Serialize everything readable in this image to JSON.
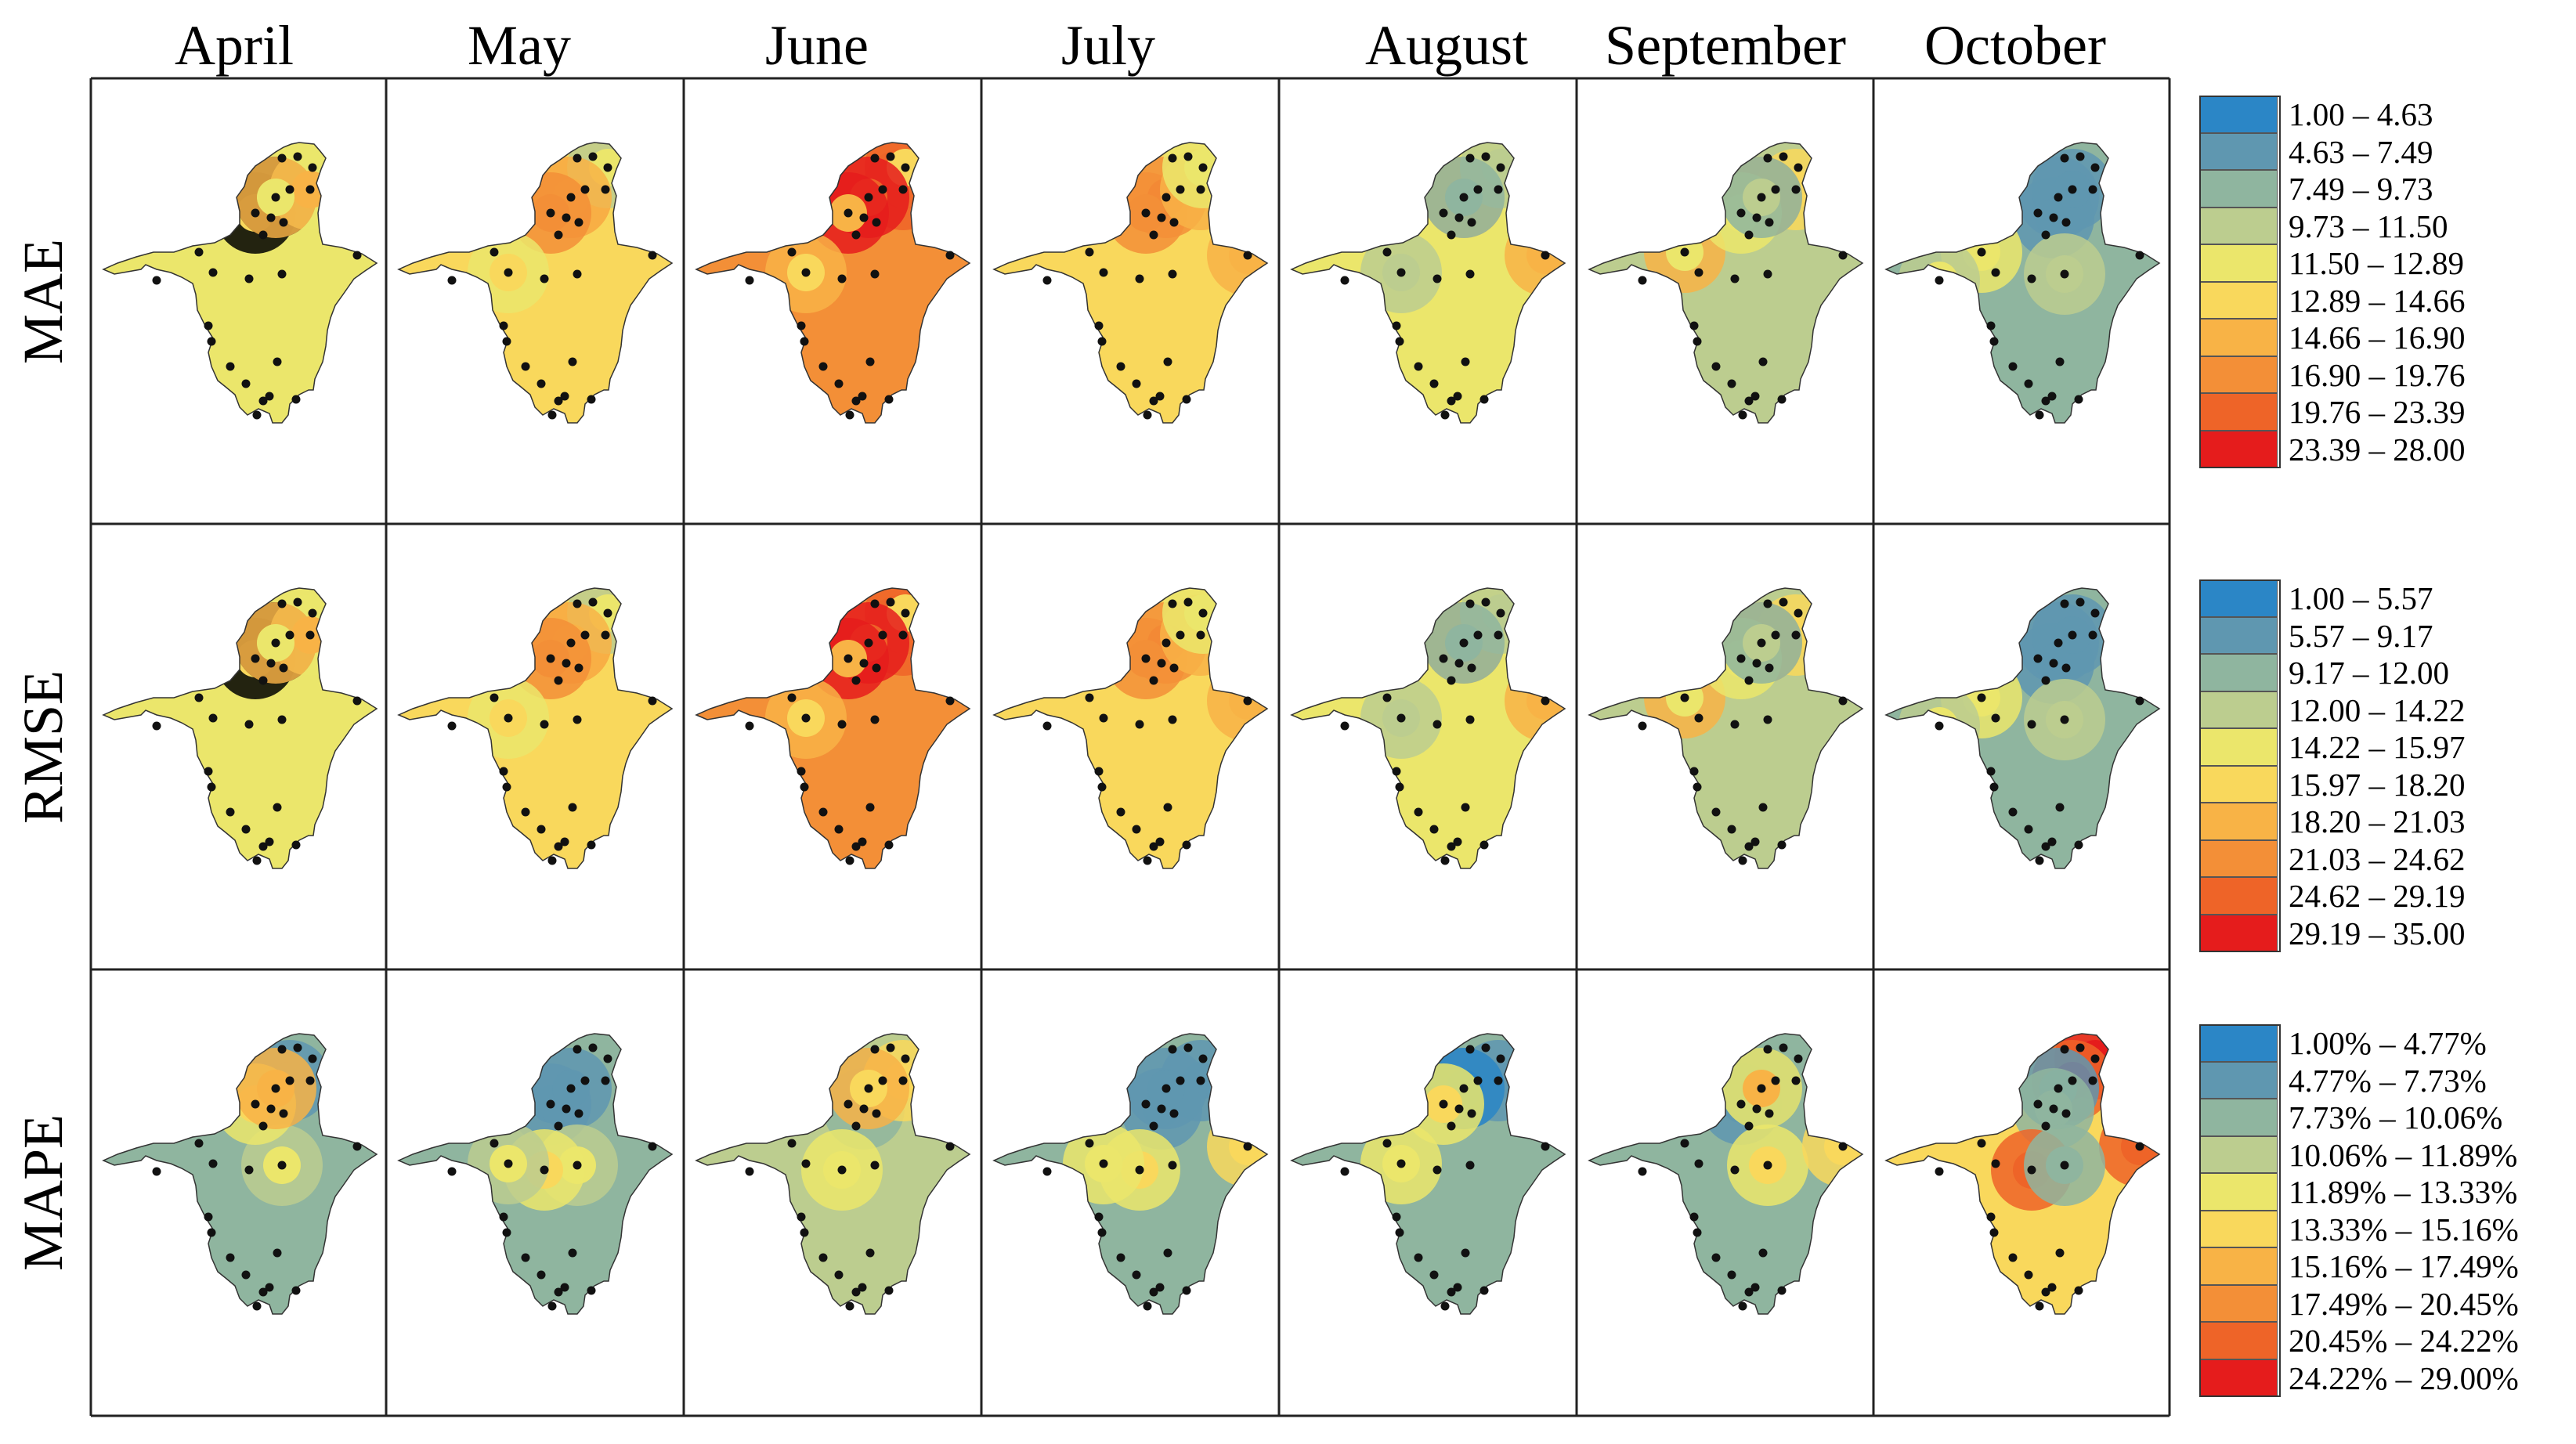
{
  "months": [
    "April",
    "May",
    "June",
    "July",
    "August",
    "September",
    "October"
  ],
  "metrics": [
    "MAE",
    "RMSE",
    "MAPE"
  ],
  "colors": [
    "#2b86c6",
    "#5f97b0",
    "#8fb59f",
    "#bccd8f",
    "#ebe66b",
    "#f9d85c",
    "#f8b346",
    "#f38f37",
    "#ee6428",
    "#e51c1c"
  ],
  "legends": [
    {
      "metric": "MAE",
      "ranges": [
        "1.00 – 4.63",
        "4.63 – 7.49",
        "7.49 – 9.73",
        "9.73 – 11.50",
        "11.50 – 12.89",
        "12.89 – 14.66",
        "14.66 – 16.90",
        "16.90 – 19.76",
        "19.76 – 23.39",
        "23.39 – 28.00"
      ]
    },
    {
      "metric": "RMSE",
      "ranges": [
        "1.00 – 5.57",
        "5.57 – 9.17",
        "9.17 – 12.00",
        "12.00 – 14.22",
        "14.22 – 15.97",
        "15.97 – 18.20",
        "18.20 – 21.03",
        "21.03 – 24.62",
        "24.62 – 29.19",
        "29.19 – 35.00"
      ]
    },
    {
      "metric": "MAPE",
      "ranges": [
        "1.00% – 4.77%",
        "4.77% – 7.73%",
        "7.73% – 10.06%",
        "10.06% – 11.89%",
        "11.89% – 13.33%",
        "13.33% – 15.16%",
        "15.16% – 17.49%",
        "17.49% – 20.45%",
        "20.45% – 24.22%",
        "24.22% – 29.00%"
      ]
    }
  ],
  "maps": [
    [
      {
        "base": 4,
        "spots": [
          [
            2,
            30,
            5
          ],
          [
            10,
            6,
            5
          ],
          [
            13,
            5,
            6
          ],
          [
            4,
            3,
            6
          ],
          [
            6,
            5,
            4
          ]
        ]
      },
      {
        "base": 5,
        "spots": [
          [
            7,
            5,
            8
          ],
          [
            3,
            2,
            4
          ],
          [
            6,
            30,
            6
          ],
          [
            7,
            6,
            7
          ],
          [
            4,
            10,
            5
          ]
        ]
      },
      {
        "base": 7,
        "spots": [
          [
            8,
            3,
            7
          ],
          [
            8,
            2,
            5
          ],
          [
            9,
            30,
            8
          ],
          [
            9,
            6,
            6
          ],
          [
            6,
            10,
            5
          ]
        ]
      },
      {
        "base": 5,
        "spots": [
          [
            7,
            5,
            8
          ],
          [
            7,
            6,
            7
          ],
          [
            6,
            3,
            6
          ],
          [
            6,
            14,
            6
          ],
          [
            4,
            2,
            4
          ]
        ]
      },
      {
        "base": 4,
        "spots": [
          [
            6,
            5,
            7
          ],
          [
            6,
            14,
            6
          ],
          [
            3,
            2,
            3
          ],
          [
            2,
            30,
            2
          ],
          [
            3,
            10,
            3
          ]
        ]
      },
      {
        "base": 3,
        "spots": [
          [
            5,
            3,
            5
          ],
          [
            6,
            30,
            5
          ],
          [
            6,
            11,
            4
          ],
          [
            4,
            6,
            4
          ],
          [
            2,
            5,
            3
          ]
        ]
      },
      {
        "base": 2,
        "spots": [
          [
            1,
            5,
            1
          ],
          [
            1,
            7,
            1
          ],
          [
            1,
            4,
            1
          ],
          [
            3,
            13,
            3
          ],
          [
            4,
            11,
            4
          ],
          [
            3,
            15,
            4
          ]
        ]
      }
    ],
    [
      {
        "base": 4,
        "spots": [
          [
            2,
            30,
            5
          ],
          [
            10,
            6,
            5
          ],
          [
            13,
            5,
            6
          ],
          [
            4,
            3,
            6
          ],
          [
            6,
            5,
            4
          ]
        ]
      },
      {
        "base": 5,
        "spots": [
          [
            7,
            5,
            8
          ],
          [
            3,
            2,
            4
          ],
          [
            6,
            30,
            6
          ],
          [
            7,
            6,
            7
          ],
          [
            4,
            10,
            5
          ]
        ]
      },
      {
        "base": 7,
        "spots": [
          [
            8,
            3,
            7
          ],
          [
            8,
            2,
            5
          ],
          [
            9,
            30,
            8
          ],
          [
            9,
            6,
            6
          ],
          [
            6,
            10,
            5
          ]
        ]
      },
      {
        "base": 5,
        "spots": [
          [
            7,
            5,
            8
          ],
          [
            7,
            6,
            7
          ],
          [
            6,
            3,
            6
          ],
          [
            6,
            14,
            6
          ],
          [
            4,
            2,
            4
          ]
        ]
      },
      {
        "base": 4,
        "spots": [
          [
            6,
            5,
            7
          ],
          [
            6,
            14,
            6
          ],
          [
            3,
            2,
            3
          ],
          [
            2,
            30,
            2
          ],
          [
            3,
            10,
            3
          ]
        ]
      },
      {
        "base": 3,
        "spots": [
          [
            5,
            3,
            5
          ],
          [
            6,
            30,
            5
          ],
          [
            6,
            11,
            4
          ],
          [
            4,
            6,
            4
          ],
          [
            2,
            5,
            3
          ]
        ]
      },
      {
        "base": 2,
        "spots": [
          [
            1,
            5,
            1
          ],
          [
            1,
            7,
            1
          ],
          [
            1,
            4,
            1
          ],
          [
            3,
            13,
            3
          ],
          [
            4,
            11,
            4
          ],
          [
            3,
            15,
            4
          ]
        ]
      }
    ],
    [
      {
        "base": 2,
        "spots": [
          [
            1,
            5,
            1
          ],
          [
            1,
            4,
            1
          ],
          [
            3,
            13,
            4
          ],
          [
            4,
            6,
            5
          ],
          [
            6,
            30,
            6
          ]
        ]
      },
      {
        "base": 2,
        "spots": [
          [
            1,
            6,
            1
          ],
          [
            1,
            5,
            1
          ],
          [
            3,
            13,
            4
          ],
          [
            4,
            12,
            5
          ],
          [
            3,
            10,
            4
          ]
        ]
      },
      {
        "base": 3,
        "spots": [
          [
            2,
            5,
            2
          ],
          [
            2,
            7,
            2
          ],
          [
            5,
            3,
            5
          ],
          [
            6,
            30,
            5
          ],
          [
            4,
            12,
            4
          ]
        ]
      },
      {
        "base": 2,
        "spots": [
          [
            1,
            3,
            1
          ],
          [
            1,
            7,
            1
          ],
          [
            1,
            5,
            1
          ],
          [
            4,
            12,
            5
          ],
          [
            5,
            14,
            5
          ],
          [
            4,
            10,
            4
          ]
        ]
      },
      {
        "base": 2,
        "spots": [
          [
            1,
            3,
            1
          ],
          [
            1,
            5,
            1
          ],
          [
            0,
            30,
            0
          ],
          [
            4,
            6,
            5
          ],
          [
            4,
            10,
            4
          ]
        ]
      },
      {
        "base": 2,
        "spots": [
          [
            1,
            6,
            1
          ],
          [
            1,
            5,
            1
          ],
          [
            4,
            30,
            6
          ],
          [
            4,
            13,
            5
          ],
          [
            5,
            14,
            5
          ]
        ]
      },
      {
        "base": 5,
        "spots": [
          [
            9,
            2,
            9
          ],
          [
            8,
            4,
            9
          ],
          [
            1,
            5,
            1
          ],
          [
            2,
            7,
            2
          ],
          [
            8,
            12,
            8
          ],
          [
            8,
            14,
            8
          ],
          [
            2,
            13,
            2
          ]
        ]
      }
    ]
  ]
}
